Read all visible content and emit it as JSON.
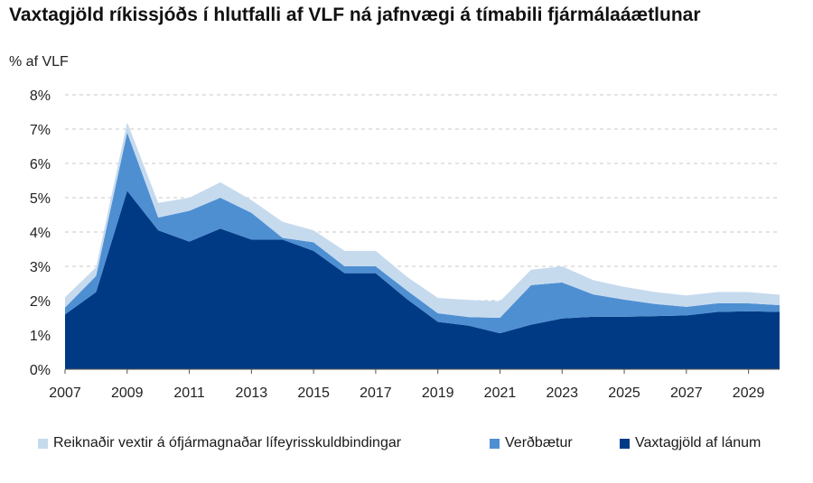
{
  "title": "Vaxtagjöld ríkissjóðs í hlutfalli af VLF ná jafnvægi á tímabili fjármálaáætlunar",
  "subtitle": "% af VLF",
  "chart_data": {
    "type": "area",
    "stacked": true,
    "title": "Vaxtagjöld ríkissjóðs í hlutfalli af VLF ná jafnvægi á tímabili fjármálaáætlunar",
    "ylabel": "% af VLF",
    "xlabel": "",
    "x": [
      2007,
      2008,
      2009,
      2010,
      2011,
      2012,
      2013,
      2014,
      2015,
      2016,
      2017,
      2018,
      2019,
      2020,
      2021,
      2022,
      2023,
      2024,
      2025,
      2026,
      2027,
      2028,
      2029,
      2030
    ],
    "xticks": [
      "2007",
      "2009",
      "2011",
      "2013",
      "2015",
      "2017",
      "2019",
      "2021",
      "2023",
      "2025",
      "2027",
      "2029"
    ],
    "yticks": [
      "0%",
      "1%",
      "2%",
      "3%",
      "4%",
      "5%",
      "6%",
      "7%",
      "8%"
    ],
    "ylim": [
      0,
      8
    ],
    "grid": "horizontal dashed",
    "legend_position": "bottom",
    "series": [
      {
        "name": "Vaxtagjöld af lánum",
        "color": "#003a85",
        "values": [
          1.6,
          2.25,
          5.2,
          4.05,
          3.72,
          4.1,
          3.78,
          3.78,
          3.45,
          2.8,
          2.8,
          2.05,
          1.38,
          1.27,
          1.05,
          1.3,
          1.48,
          1.53,
          1.53,
          1.55,
          1.57,
          1.67,
          1.69,
          1.67
        ]
      },
      {
        "name": "Verðbætur",
        "color": "#4e8fd2",
        "values": [
          0.2,
          0.47,
          1.7,
          0.37,
          0.9,
          0.9,
          0.78,
          0.05,
          0.25,
          0.2,
          0.2,
          0.25,
          0.25,
          0.25,
          0.45,
          1.15,
          1.05,
          0.65,
          0.5,
          0.35,
          0.25,
          0.25,
          0.23,
          0.2
        ]
      },
      {
        "name": "Reiknaðir vextir á ófjármagnaðar lífeyrisskuldbindingar",
        "color": "#c6daee",
        "values": [
          0.3,
          0.25,
          0.3,
          0.43,
          0.38,
          0.45,
          0.37,
          0.47,
          0.35,
          0.45,
          0.45,
          0.4,
          0.45,
          0.5,
          0.48,
          0.45,
          0.47,
          0.42,
          0.37,
          0.35,
          0.33,
          0.33,
          0.33,
          0.3
        ]
      }
    ]
  },
  "legend": [
    {
      "label": "Reiknaðir vextir á ófjármagnaðar lífeyrisskuldbindingar",
      "color": "#c6daee"
    },
    {
      "label": "Verðbætur",
      "color": "#4e8fd2"
    },
    {
      "label": "Vaxtagjöld af lánum",
      "color": "#003a85"
    }
  ]
}
